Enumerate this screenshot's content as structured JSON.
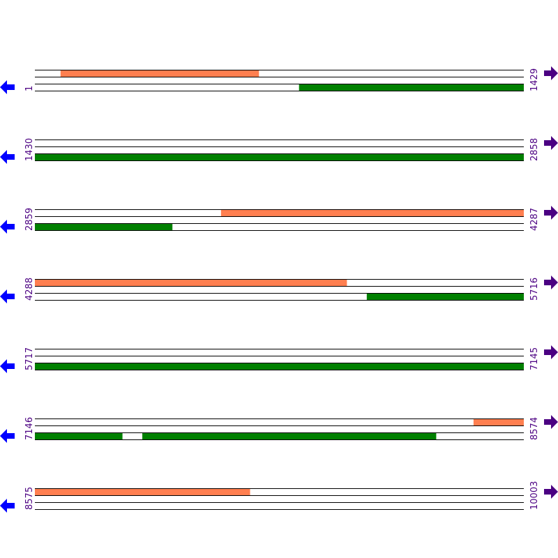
{
  "colors": {
    "forward_feature": "#ff7f50",
    "reverse_feature": "#008000",
    "line": "#000000",
    "label": "#4b0082",
    "left_arrow": "#0000ff",
    "right_arrow": "#4b0082"
  },
  "icons": {
    "left": "arrow-left-icon",
    "right": "arrow-right-icon"
  },
  "rows": [
    {
      "start": "1",
      "end": "1429",
      "forward": [
        [
          76,
          655
        ]
      ],
      "reverse": [
        [
          773,
          1429
        ]
      ]
    },
    {
      "start": "1430",
      "end": "2858",
      "forward": [],
      "reverse": [
        [
          1430,
          2858
        ]
      ]
    },
    {
      "start": "2859",
      "end": "4287",
      "forward": [
        [
          3403,
          4287
        ]
      ],
      "reverse": [
        [
          2859,
          3260
        ]
      ]
    },
    {
      "start": "4288",
      "end": "5716",
      "forward": [
        [
          4288,
          5199
        ]
      ],
      "reverse": [
        [
          5258,
          5716
        ]
      ]
    },
    {
      "start": "5717",
      "end": "7145",
      "forward": [],
      "reverse": [
        [
          5717,
          7145
        ]
      ]
    },
    {
      "start": "7146",
      "end": "8574",
      "forward": [
        [
          8428,
          8574
        ]
      ],
      "reverse": [
        [
          7146,
          7401
        ],
        [
          7460,
          8318
        ]
      ]
    },
    {
      "start": "8575",
      "end": "10003",
      "forward": [
        [
          8575,
          9203
        ]
      ],
      "reverse": []
    }
  ]
}
